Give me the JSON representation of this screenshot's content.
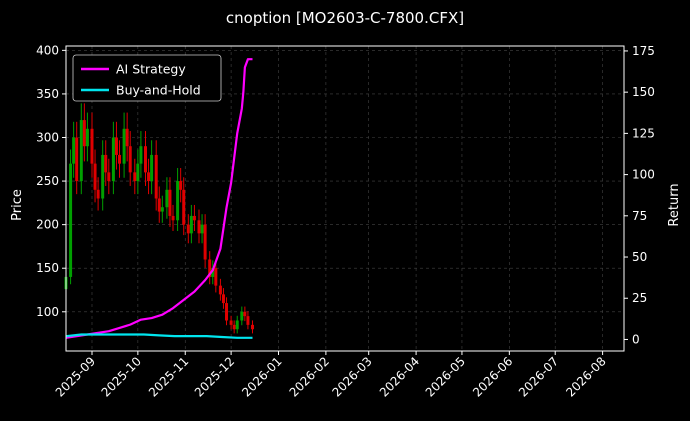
{
  "chart_data": {
    "type": "line",
    "title": "cnoption [MO2603-C-7800.CFX]",
    "ylabel": "Price",
    "y2label": "Return",
    "x_range": [
      "2025-08-15",
      "2026-08-15"
    ],
    "x_ticks": [
      "2025-09",
      "2025-10",
      "2025-11",
      "2025-12",
      "2026-01",
      "2026-02",
      "2026-03",
      "2026-04",
      "2026-05",
      "2026-06",
      "2026-07",
      "2026-08"
    ],
    "ylim": [
      55,
      405
    ],
    "y_ticks": [
      100,
      150,
      200,
      250,
      300,
      350,
      400
    ],
    "y2lim": [
      -7,
      178
    ],
    "y2_ticks": [
      0,
      25,
      50,
      75,
      100,
      125,
      150,
      175
    ],
    "grid": true,
    "legend_position": "top-left",
    "colors": {
      "background": "#000000",
      "grid": "#444444",
      "ai_strategy": "#ff00ff",
      "buy_and_hold": "#00e5ee",
      "candle_up": "#00a000",
      "candle_down": "#e00000"
    },
    "price_series": {
      "dates": [
        "2025-08-15",
        "2025-08-18",
        "2025-08-20",
        "2025-08-22",
        "2025-08-25",
        "2025-08-27",
        "2025-08-29",
        "2025-09-01",
        "2025-09-03",
        "2025-09-05",
        "2025-09-08",
        "2025-09-10",
        "2025-09-12",
        "2025-09-15",
        "2025-09-17",
        "2025-09-19",
        "2025-09-22",
        "2025-09-24",
        "2025-09-26",
        "2025-09-29",
        "2025-10-01",
        "2025-10-03",
        "2025-10-06",
        "2025-10-08",
        "2025-10-10",
        "2025-10-13",
        "2025-10-15",
        "2025-10-17",
        "2025-10-20",
        "2025-10-22",
        "2025-10-24",
        "2025-10-27",
        "2025-10-29",
        "2025-10-31",
        "2025-11-03",
        "2025-11-05",
        "2025-11-07",
        "2025-11-10",
        "2025-11-12",
        "2025-11-14",
        "2025-11-17",
        "2025-11-19",
        "2025-11-21",
        "2025-11-24",
        "2025-11-26",
        "2025-11-28",
        "2025-12-01",
        "2025-12-03",
        "2025-12-05",
        "2025-12-08",
        "2025-12-10",
        "2025-12-12",
        "2025-12-15"
      ],
      "values": [
        140,
        270,
        300,
        250,
        320,
        290,
        310,
        270,
        240,
        230,
        280,
        260,
        250,
        300,
        280,
        270,
        310,
        290,
        260,
        250,
        270,
        290,
        260,
        250,
        280,
        230,
        215,
        220,
        240,
        210,
        205,
        250,
        240,
        200,
        190,
        210,
        205,
        190,
        200,
        160,
        140,
        150,
        130,
        120,
        110,
        90,
        85,
        80,
        90,
        100,
        95,
        85,
        80
      ]
    },
    "series": [
      {
        "name": "AI Strategy",
        "dates": [
          "2025-08-15",
          "2025-08-22",
          "2025-08-29",
          "2025-09-05",
          "2025-09-12",
          "2025-09-19",
          "2025-09-26",
          "2025-10-03",
          "2025-10-10",
          "2025-10-17",
          "2025-10-24",
          "2025-10-31",
          "2025-11-07",
          "2025-11-14",
          "2025-11-19",
          "2025-11-24",
          "2025-11-28",
          "2025-12-01",
          "2025-12-03",
          "2025-12-05",
          "2025-12-08",
          "2025-12-09",
          "2025-12-10",
          "2025-12-12",
          "2025-12-15"
        ],
        "values": [
          1,
          2,
          3,
          4,
          5,
          7,
          9,
          12,
          13,
          15,
          19,
          24,
          29,
          36,
          42,
          55,
          80,
          95,
          110,
          125,
          140,
          150,
          165,
          170,
          170
        ]
      },
      {
        "name": "Buy-and-Hold",
        "dates": [
          "2025-08-15",
          "2025-08-25",
          "2025-09-05",
          "2025-09-15",
          "2025-09-25",
          "2025-10-05",
          "2025-10-15",
          "2025-10-25",
          "2025-11-05",
          "2025-11-15",
          "2025-11-25",
          "2025-12-05",
          "2025-12-15"
        ],
        "values": [
          2,
          3,
          3,
          3,
          3,
          3,
          2.5,
          2,
          2,
          2,
          1.5,
          1,
          1
        ]
      }
    ]
  }
}
